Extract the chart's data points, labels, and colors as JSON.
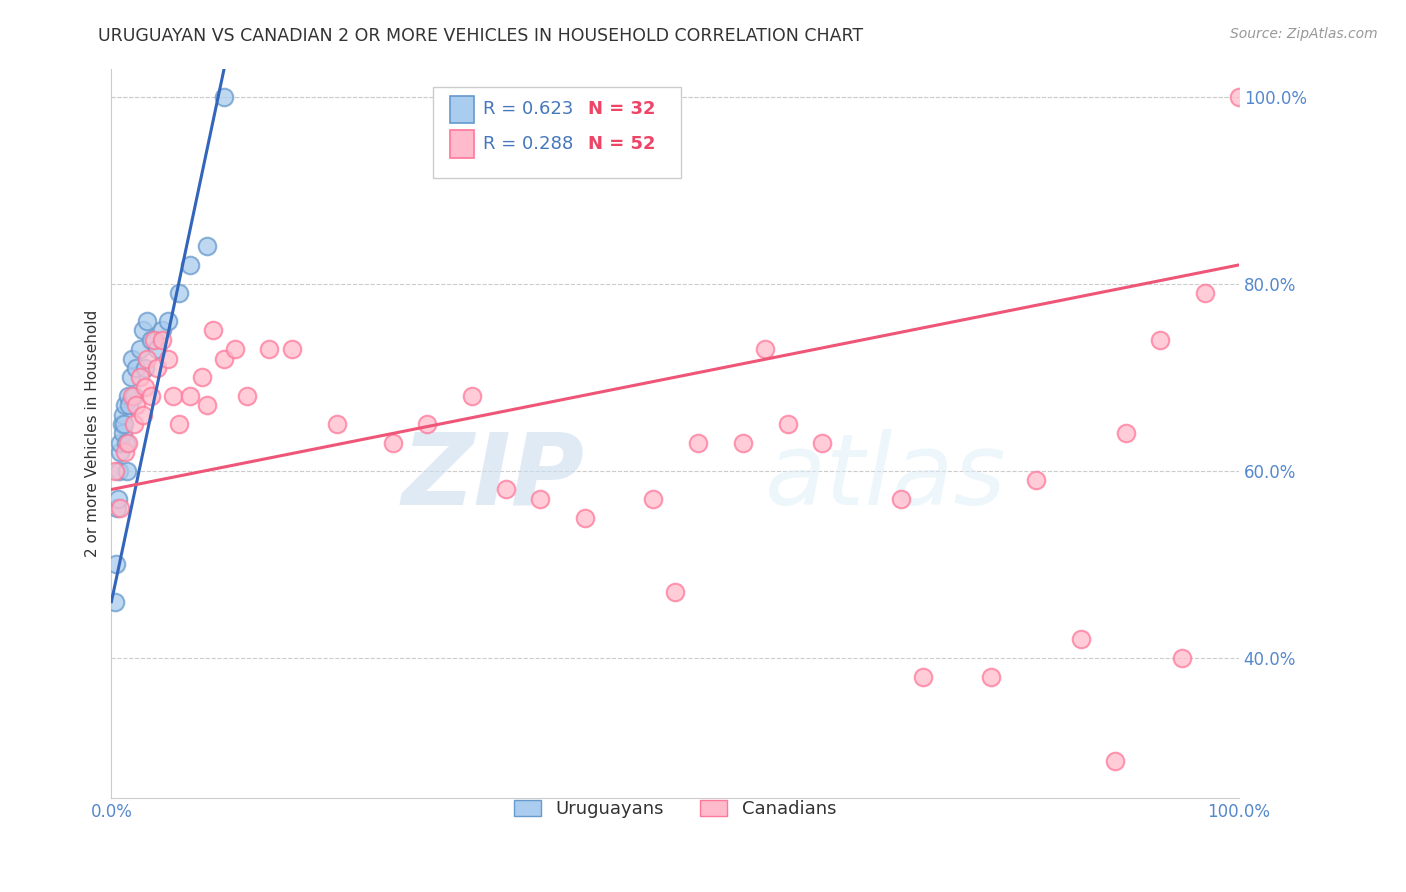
{
  "title": "URUGUAYAN VS CANADIAN 2 OR MORE VEHICLES IN HOUSEHOLD CORRELATION CHART",
  "source": "Source: ZipAtlas.com",
  "ylabel": "2 or more Vehicles in Household",
  "watermark_zip": "ZIP",
  "watermark_atlas": "atlas",
  "x_min": 0.0,
  "x_max": 100.0,
  "y_min": 25.0,
  "y_max": 103.0,
  "y_ticks_right": [
    40,
    60,
    80,
    100
  ],
  "y_tick_labels_right": [
    "40.0%",
    "60.0%",
    "80.0%",
    "100.0%"
  ],
  "blue_color": "#6699CC",
  "pink_color": "#FF7799",
  "blue_fill": "#AACCEE",
  "pink_fill": "#FFBBCC",
  "legend_blue_R": "R = 0.623",
  "legend_blue_N": "N = 32",
  "legend_pink_R": "R = 0.288",
  "legend_pink_N": "N = 52",
  "legend_label_blue": "Uruguayans",
  "legend_label_pink": "Canadians",
  "uruguayan_x": [
    0.3,
    0.4,
    0.5,
    0.6,
    0.7,
    0.8,
    0.8,
    0.9,
    1.0,
    1.0,
    1.1,
    1.2,
    1.3,
    1.4,
    1.5,
    1.6,
    1.7,
    1.8,
    2.0,
    2.2,
    2.5,
    2.8,
    3.0,
    3.2,
    3.5,
    4.0,
    4.5,
    5.0,
    6.0,
    7.0,
    8.5,
    10.0
  ],
  "uruguayan_y": [
    46,
    50,
    56,
    57,
    60,
    62,
    63,
    65,
    64,
    66,
    65,
    67,
    63,
    60,
    68,
    67,
    70,
    72,
    68,
    71,
    73,
    75,
    71,
    76,
    74,
    73,
    75,
    76,
    79,
    82,
    84,
    100
  ],
  "canadian_x": [
    0.3,
    0.8,
    1.2,
    1.5,
    1.8,
    2.0,
    2.2,
    2.5,
    2.8,
    3.0,
    3.2,
    3.5,
    3.8,
    4.0,
    4.5,
    5.0,
    5.5,
    6.0,
    7.0,
    8.0,
    8.5,
    9.0,
    10.0,
    11.0,
    12.0,
    14.0,
    16.0,
    20.0,
    25.0,
    28.0,
    32.0,
    35.0,
    38.0,
    42.0,
    48.0,
    50.0,
    52.0,
    56.0,
    58.0,
    60.0,
    63.0,
    70.0,
    72.0,
    78.0,
    82.0,
    86.0,
    89.0,
    90.0,
    93.0,
    95.0,
    97.0,
    100.0
  ],
  "canadian_y": [
    60,
    56,
    62,
    63,
    68,
    65,
    67,
    70,
    66,
    69,
    72,
    68,
    74,
    71,
    74,
    72,
    68,
    65,
    68,
    70,
    67,
    75,
    72,
    73,
    68,
    73,
    73,
    65,
    63,
    65,
    68,
    58,
    57,
    55,
    57,
    47,
    63,
    63,
    73,
    65,
    63,
    57,
    38,
    38,
    59,
    42,
    29,
    64,
    74,
    40,
    79,
    100
  ],
  "blue_line_x0": 0.0,
  "blue_line_y0": 46.0,
  "blue_line_x1": 10.0,
  "blue_line_y1": 103.0,
  "pink_line_x0": 0.0,
  "pink_line_y0": 58.0,
  "pink_line_x1": 100.0,
  "pink_line_y1": 82.0,
  "grid_color": "#CCCCCC",
  "background_color": "#FFFFFF",
  "title_color": "#333333",
  "right_tick_color": "#5588CC",
  "bottom_tick_color": "#5588CC",
  "text_color_blue": "#4477BB",
  "text_color_pink": "#EE4466"
}
